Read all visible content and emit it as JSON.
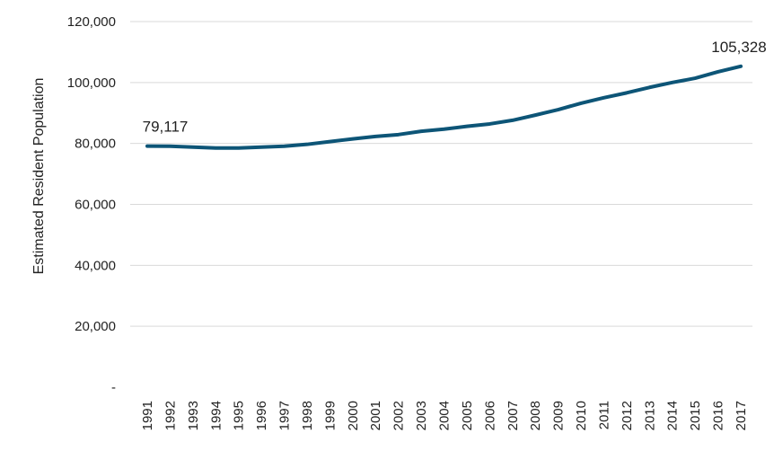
{
  "chart_data": {
    "type": "line",
    "title": "",
    "xlabel": "",
    "ylabel": "Estimated Resident Population",
    "ylim": [
      0,
      120000
    ],
    "yticks": [
      0,
      20000,
      40000,
      60000,
      80000,
      100000,
      120000
    ],
    "ytick_labels": [
      "-",
      "20,000",
      "40,000",
      "60,000",
      "80,000",
      "100,000",
      "120,000"
    ],
    "grid": "horizontal",
    "legend": "none",
    "line_color": "#0d5577",
    "categories": [
      "1991",
      "1992",
      "1993",
      "1994",
      "1995",
      "1996",
      "1997",
      "1998",
      "1999",
      "2000",
      "2001",
      "2002",
      "2003",
      "2004",
      "2005",
      "2006",
      "2007",
      "2008",
      "2009",
      "2010",
      "2011",
      "2012",
      "2013",
      "2014",
      "2015",
      "2016",
      "2017"
    ],
    "series": [
      {
        "values": [
          79117,
          79100,
          78800,
          78500,
          78500,
          78800,
          79100,
          79700,
          80600,
          81500,
          82300,
          82900,
          84000,
          84700,
          85600,
          86400,
          87600,
          89300,
          91100,
          93200,
          95000,
          96600,
          98400,
          100000,
          101400,
          103500,
          105328
        ]
      }
    ],
    "annotations": [
      {
        "index": 0,
        "text": "79,117"
      },
      {
        "index": 26,
        "text": "105,328"
      }
    ]
  }
}
